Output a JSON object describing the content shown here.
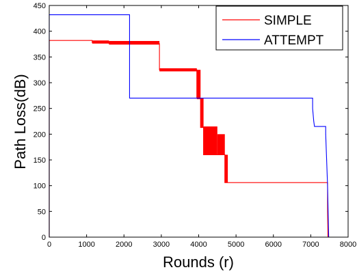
{
  "chart_data": {
    "type": "line",
    "title": "",
    "xlabel": "Rounds (r)",
    "ylabel": "Path Loss(dB)",
    "xlim": [
      0,
      8000
    ],
    "ylim": [
      0,
      450
    ],
    "xticks": [
      0,
      1000,
      2000,
      3000,
      4000,
      5000,
      6000,
      7000,
      8000
    ],
    "yticks": [
      0,
      50,
      100,
      150,
      200,
      250,
      300,
      350,
      400,
      450
    ],
    "xtick_labels": [
      "0",
      "1000",
      "2000",
      "3000",
      "4000",
      "5000",
      "6000",
      "7000",
      "8000"
    ],
    "ytick_labels": [
      "0",
      "50",
      "100",
      "150",
      "200",
      "250",
      "300",
      "350",
      "400",
      "450"
    ],
    "grid": false,
    "legend_position": "top-right",
    "series": [
      {
        "name": "SIMPLE",
        "color": "#ff0000",
        "points": [
          [
            0,
            0
          ],
          [
            0,
            382
          ],
          [
            1150,
            382
          ],
          [
            1150,
            378
          ],
          [
            1600,
            378
          ],
          [
            1600,
            376
          ],
          [
            2950,
            376
          ],
          [
            2950,
            325
          ],
          [
            3950,
            325
          ],
          [
            3950,
            270
          ],
          [
            4050,
            270
          ],
          [
            4050,
            213
          ],
          [
            4130,
            213
          ],
          [
            4130,
            160
          ],
          [
            4700,
            160
          ],
          [
            4700,
            106
          ],
          [
            7450,
            106
          ],
          [
            7450,
            50
          ],
          [
            7460,
            0
          ]
        ],
        "bands": [
          {
            "x": [
              1150,
              1600
            ],
            "y": [
              376,
              382
            ]
          },
          {
            "x": [
              1600,
              2950
            ],
            "y": [
              374,
              381
            ]
          },
          {
            "x": [
              2950,
              3950
            ],
            "y": [
              322,
              328
            ]
          },
          {
            "x": [
              3950,
              4050
            ],
            "y": [
              268,
              325
            ]
          },
          {
            "x": [
              4050,
              4130
            ],
            "y": [
              213,
              270
            ]
          },
          {
            "x": [
              4130,
              4500
            ],
            "y": [
              160,
              215
            ]
          },
          {
            "x": [
              4500,
              4700
            ],
            "y": [
              160,
              200
            ]
          },
          {
            "x": [
              4700,
              4780
            ],
            "y": [
              106,
              160
            ]
          }
        ]
      },
      {
        "name": "ATTEMPT",
        "color": "#0000ff",
        "points": [
          [
            0,
            0
          ],
          [
            0,
            432
          ],
          [
            2150,
            432
          ],
          [
            2150,
            270
          ],
          [
            7050,
            270
          ],
          [
            7050,
            250
          ],
          [
            7080,
            225
          ],
          [
            7100,
            215
          ],
          [
            7400,
            215
          ],
          [
            7400,
            200
          ],
          [
            7420,
            160
          ],
          [
            7450,
            100
          ],
          [
            7480,
            0
          ]
        ]
      }
    ]
  }
}
